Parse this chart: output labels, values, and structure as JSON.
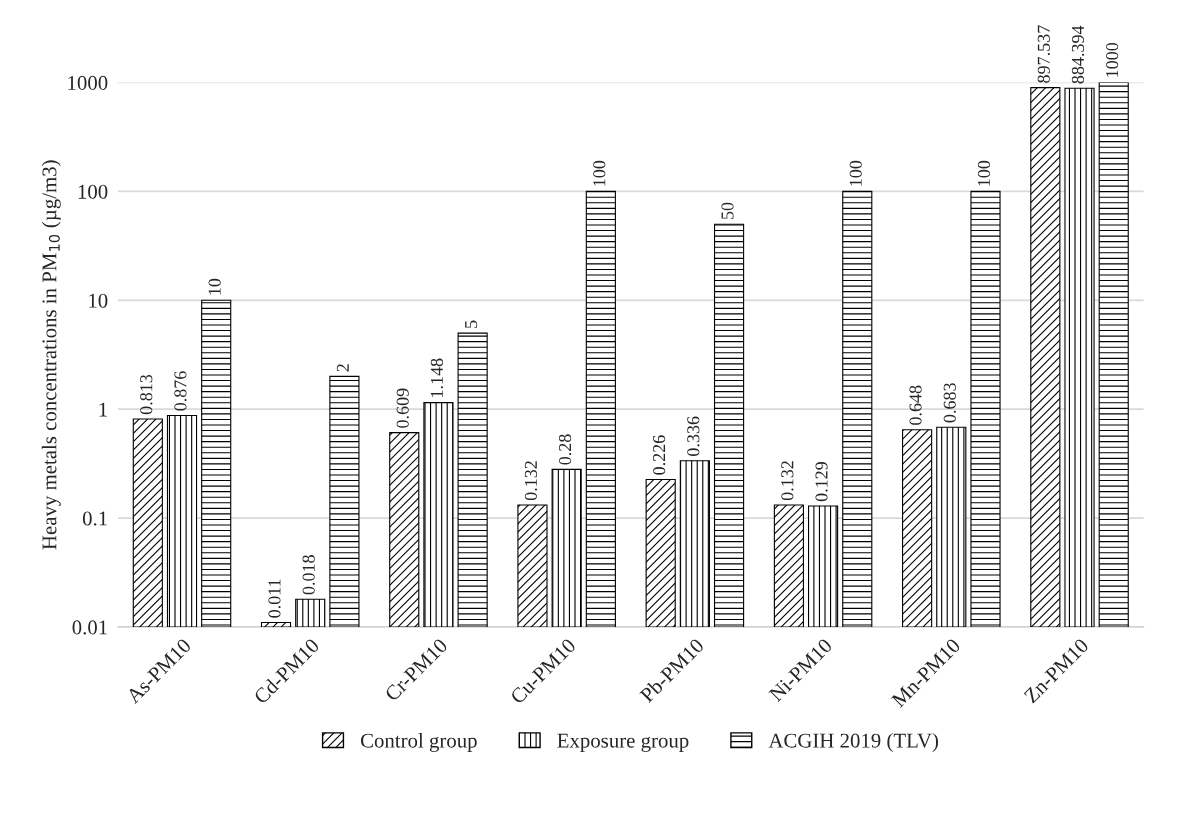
{
  "chart_data": {
    "type": "bar",
    "ylabel": "Heavy metals concentrations in PM$_{10}$ (µg/m3)",
    "categories": [
      "As-PM10",
      "Cd-PM10",
      "Cr-PM10",
      "Cu-PM10",
      "Pb-PM10",
      "Ni-PM10",
      "Mn-PM10",
      "Zn-PM10"
    ],
    "series": [
      {
        "name": "Control group",
        "color": "#000000",
        "values": [
          0.813,
          0.011,
          0.609,
          0.132,
          0.226,
          0.132,
          0.648,
          897.537
        ]
      },
      {
        "name": "Exposure group",
        "color": "#000000",
        "values": [
          0.876,
          0.018,
          1.148,
          0.28,
          0.336,
          0.129,
          0.683,
          884.394
        ]
      },
      {
        "name": "ACGIH 2019 (TLV)",
        "color": "#000000",
        "values": [
          10,
          2,
          5,
          100,
          50,
          100,
          100,
          1000
        ]
      }
    ],
    "log": "y",
    "ylim": [
      0.01,
      1000
    ],
    "yticks": [
      {
        "value": 0.01,
        "label": "0.01"
      },
      {
        "value": 0.1,
        "label": "0.1"
      },
      1,
      10,
      100,
      1000
    ],
    "grid": "y",
    "legend": "bottom",
    "data_labels": true
  }
}
